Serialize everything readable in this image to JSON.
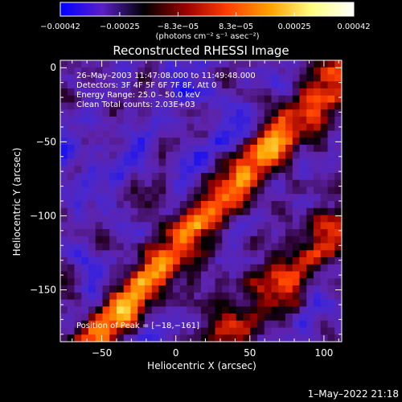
{
  "chart_data": {
    "type": "heatmap",
    "title": "Reconstructed RHESSI Image",
    "xlabel": "Heliocentric X (arcsec)",
    "ylabel": "Heliocentric Y (arcsec)",
    "xlim": [
      -78,
      112
    ],
    "ylim": [
      -185,
      5
    ],
    "x_ticks": [
      -50,
      0,
      50,
      100
    ],
    "x_tick_labels": [
      "−50",
      "0",
      "50",
      "100"
    ],
    "y_ticks": [
      0,
      -50,
      -100,
      -150
    ],
    "y_tick_labels": [
      "0",
      "−50",
      "−100",
      "−150"
    ],
    "colorbar": {
      "range": [
        -0.00042,
        0.00042
      ],
      "ticks": [
        -0.00042,
        -0.00025,
        -8.3e-05,
        8.3e-05,
        0.00025,
        0.00042
      ],
      "tick_labels": [
        "−0.00042",
        "−0.00025",
        "−8.3e−05",
        "8.3e−05",
        "0.00025",
        "0.00042"
      ],
      "unit_label": "(photons cm⁻² s⁻¹ asec⁻²)",
      "colors": [
        "#0000ff",
        "#5a1fc8",
        "#000000",
        "#9b0000",
        "#ff4000",
        "#ffa000",
        "#ffff80",
        "#ffffff"
      ]
    },
    "annotations": [
      "26–May–2003 11:47:08.000 to 11:49:48.000",
      "Detectors: 3F 4F 5F 6F 7F 8F, Att 0",
      "Energy Range: 25.0 – 50.0 keV",
      "Clean    Total counts: 2.03E+03"
    ],
    "peak_label": "Position of Peak = [−18,−161]",
    "peak": [
      -18,
      -161
    ],
    "grid": false,
    "colorscale_note": "ridge of bright emission running from lower-left to upper-right"
  },
  "timestamp": "1–May–2022 21:18"
}
